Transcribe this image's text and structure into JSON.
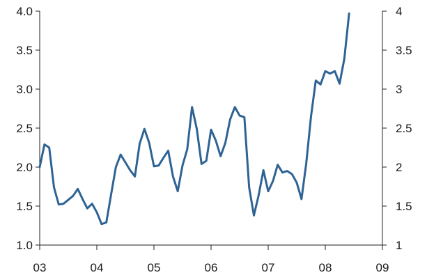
{
  "chart_data": {
    "type": "line",
    "title": "",
    "xlabel": "",
    "ylabel": "",
    "grid": false,
    "legend": "none",
    "x_start": 2003.0,
    "x_step": 0.0833333,
    "xlim": [
      2003,
      2009
    ],
    "ylim": [
      1.0,
      4.0
    ],
    "line_color": "#2e6394",
    "y_left_ticks": [
      {
        "value": 1.0,
        "label": "1.0"
      },
      {
        "value": 1.5,
        "label": "1.5"
      },
      {
        "value": 2.0,
        "label": "2.0"
      },
      {
        "value": 2.5,
        "label": "2.5"
      },
      {
        "value": 3.0,
        "label": "3.0"
      },
      {
        "value": 3.5,
        "label": "3.5"
      },
      {
        "value": 4.0,
        "label": "4.0"
      }
    ],
    "y_right_ticks": [
      {
        "value": 1.0,
        "label": "1"
      },
      {
        "value": 1.5,
        "label": "1.5"
      },
      {
        "value": 2.0,
        "label": "2"
      },
      {
        "value": 2.5,
        "label": "2.5"
      },
      {
        "value": 3.0,
        "label": "3"
      },
      {
        "value": 3.5,
        "label": "3.5"
      },
      {
        "value": 4.0,
        "label": "4"
      }
    ],
    "x_ticks": [
      {
        "value": 2003,
        "label": "03"
      },
      {
        "value": 2004,
        "label": "04"
      },
      {
        "value": 2005,
        "label": "05"
      },
      {
        "value": 2006,
        "label": "06"
      },
      {
        "value": 2007,
        "label": "07"
      },
      {
        "value": 2008,
        "label": "08"
      },
      {
        "value": 2009,
        "label": "09"
      }
    ],
    "series": [
      {
        "name": "",
        "values": [
          2.0,
          2.29,
          2.25,
          1.74,
          1.52,
          1.53,
          1.58,
          1.63,
          1.72,
          1.59,
          1.47,
          1.53,
          1.42,
          1.27,
          1.29,
          1.65,
          2.0,
          2.16,
          2.06,
          1.96,
          1.88,
          2.3,
          2.49,
          2.31,
          2.01,
          2.02,
          2.12,
          2.21,
          1.88,
          1.69,
          2.02,
          2.23,
          2.77,
          2.49,
          2.04,
          2.08,
          2.48,
          2.34,
          2.14,
          2.31,
          2.61,
          2.77,
          2.66,
          2.64,
          1.74,
          1.38,
          1.64,
          1.96,
          1.69,
          1.82,
          2.03,
          1.93,
          1.95,
          1.91,
          1.8,
          1.59,
          2.05,
          2.65,
          3.11,
          3.06,
          3.23,
          3.2,
          3.23,
          3.07,
          3.39,
          3.97
        ]
      }
    ]
  }
}
